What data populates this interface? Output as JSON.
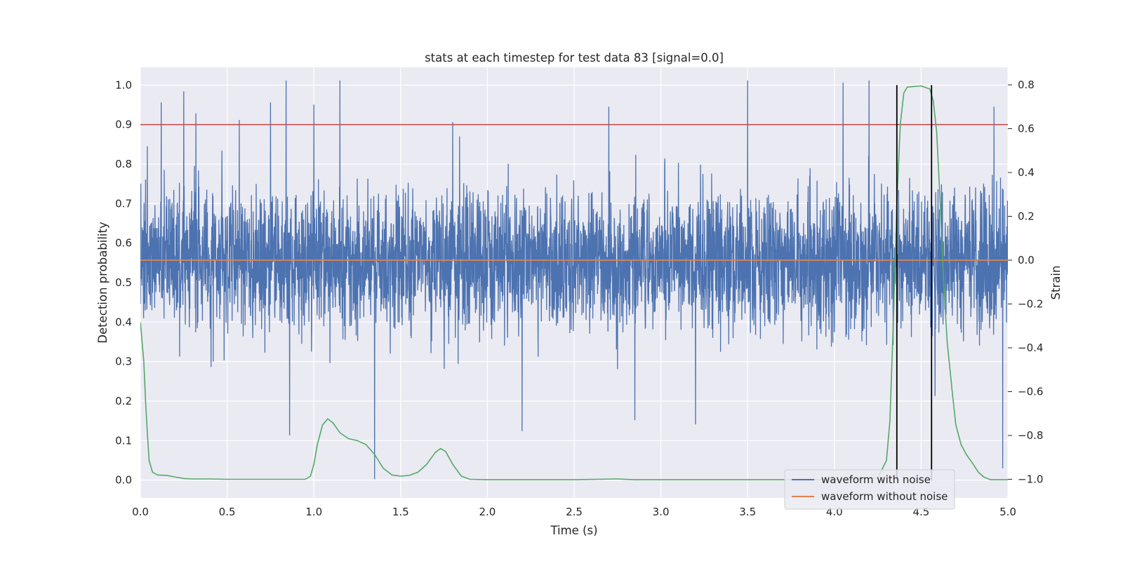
{
  "chart_data": {
    "type": "line",
    "title": "stats at each timestep for test data 83 [signal=0.0]",
    "xlabel": "Time (s)",
    "ylabel": "Detection probability",
    "ylabel_right": "Strain",
    "xlim": [
      0.0,
      5.0
    ],
    "ylim": [
      -0.045,
      1.045
    ],
    "ylim_right": [
      -1.085,
      0.88
    ],
    "x_ticks": [
      "0.0",
      "0.5",
      "1.0",
      "1.5",
      "2.0",
      "2.5",
      "3.0",
      "3.5",
      "4.0",
      "4.5",
      "5.0"
    ],
    "y_ticks": [
      "0.0",
      "0.1",
      "0.2",
      "0.3",
      "0.4",
      "0.5",
      "0.6",
      "0.7",
      "0.8",
      "0.9",
      "1.0"
    ],
    "y_ticks_right": [
      "−1.0",
      "−0.8",
      "−0.6",
      "−0.4",
      "−0.2",
      "0.0",
      "0.2",
      "0.4",
      "0.6",
      "0.8"
    ],
    "grid": true,
    "legend_position": "lower-right",
    "threshold": {
      "y": 0.9,
      "color": "#c44e52"
    },
    "series": [
      {
        "name": "waveform with noise",
        "axis": "right",
        "color": "#4c72b0",
        "x_start": 0.0,
        "x_end": 5.0,
        "rms": 0.22,
        "peaks": [
          [
            0.04,
            0.52
          ],
          [
            0.12,
            0.72
          ],
          [
            0.25,
            0.77
          ],
          [
            0.32,
            0.67
          ],
          [
            0.47,
            0.5
          ],
          [
            0.57,
            0.64
          ],
          [
            0.75,
            0.72
          ],
          [
            0.84,
            0.82
          ],
          [
            0.86,
            -0.8
          ],
          [
            1.0,
            0.71
          ],
          [
            1.15,
            0.82
          ],
          [
            1.35,
            -1.0
          ],
          [
            1.8,
            0.63
          ],
          [
            2.2,
            -0.78
          ],
          [
            2.7,
            0.7
          ],
          [
            2.85,
            -0.73
          ],
          [
            3.2,
            -0.75
          ],
          [
            3.5,
            0.82
          ],
          [
            4.05,
            0.81
          ],
          [
            4.2,
            0.82
          ],
          [
            4.58,
            -0.62
          ],
          [
            4.92,
            0.7
          ],
          [
            4.97,
            -0.95
          ]
        ]
      },
      {
        "name": "waveform without noise",
        "axis": "right",
        "color": "#dd8452",
        "points": [
          [
            0.0,
            0.0
          ],
          [
            5.0,
            0.0
          ]
        ]
      },
      {
        "name": "",
        "axis": "left",
        "color": "#55a868",
        "points": [
          [
            0.0,
            0.4
          ],
          [
            0.02,
            0.3
          ],
          [
            0.03,
            0.2
          ],
          [
            0.04,
            0.12
          ],
          [
            0.05,
            0.05
          ],
          [
            0.07,
            0.02
          ],
          [
            0.1,
            0.013
          ],
          [
            0.15,
            0.012
          ],
          [
            0.2,
            0.008
          ],
          [
            0.25,
            0.004
          ],
          [
            0.3,
            0.003
          ],
          [
            0.4,
            0.003
          ],
          [
            0.5,
            0.002
          ],
          [
            0.6,
            0.002
          ],
          [
            0.8,
            0.002
          ],
          [
            0.95,
            0.002
          ],
          [
            0.98,
            0.01
          ],
          [
            1.0,
            0.04
          ],
          [
            1.02,
            0.09
          ],
          [
            1.05,
            0.14
          ],
          [
            1.08,
            0.155
          ],
          [
            1.11,
            0.145
          ],
          [
            1.15,
            0.12
          ],
          [
            1.2,
            0.105
          ],
          [
            1.25,
            0.1
          ],
          [
            1.3,
            0.09
          ],
          [
            1.35,
            0.065
          ],
          [
            1.4,
            0.03
          ],
          [
            1.45,
            0.013
          ],
          [
            1.5,
            0.01
          ],
          [
            1.55,
            0.012
          ],
          [
            1.6,
            0.02
          ],
          [
            1.65,
            0.04
          ],
          [
            1.7,
            0.07
          ],
          [
            1.73,
            0.08
          ],
          [
            1.76,
            0.072
          ],
          [
            1.8,
            0.04
          ],
          [
            1.85,
            0.01
          ],
          [
            1.9,
            0.002
          ],
          [
            2.0,
            0.001
          ],
          [
            2.5,
            0.001
          ],
          [
            2.75,
            0.003
          ],
          [
            2.85,
            0.001
          ],
          [
            3.5,
            0.001
          ],
          [
            4.0,
            0.001
          ],
          [
            4.25,
            0.005
          ],
          [
            4.3,
            0.05
          ],
          [
            4.32,
            0.15
          ],
          [
            4.34,
            0.4
          ],
          [
            4.36,
            0.7
          ],
          [
            4.38,
            0.9
          ],
          [
            4.4,
            0.98
          ],
          [
            4.42,
            0.995
          ],
          [
            4.5,
            0.998
          ],
          [
            4.55,
            0.99
          ],
          [
            4.57,
            0.96
          ],
          [
            4.59,
            0.88
          ],
          [
            4.61,
            0.7
          ],
          [
            4.63,
            0.5
          ],
          [
            4.65,
            0.35
          ],
          [
            4.68,
            0.22
          ],
          [
            4.7,
            0.14
          ],
          [
            4.73,
            0.09
          ],
          [
            4.76,
            0.065
          ],
          [
            4.8,
            0.04
          ],
          [
            4.83,
            0.02
          ],
          [
            4.86,
            0.008
          ],
          [
            4.9,
            0.001
          ],
          [
            5.0,
            0.001
          ]
        ]
      }
    ],
    "markers": [
      {
        "x": 4.36,
        "color": "#000000"
      },
      {
        "x": 4.56,
        "color": "#000000"
      }
    ]
  }
}
